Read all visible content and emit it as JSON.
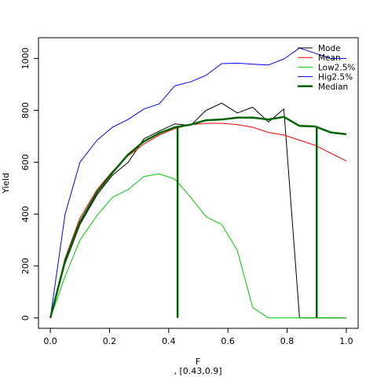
{
  "chart_data": {
    "type": "line",
    "xlabel": "F",
    "xlabel_sub": ", [0.43,0.9]",
    "ylabel": "Yield",
    "xlim": [
      -0.04,
      1.04
    ],
    "ylim": [
      -40,
      1080
    ],
    "xticks": [
      "0.0",
      "0.2",
      "0.4",
      "0.6",
      "0.8",
      "1.0"
    ],
    "xtick_values": [
      0,
      0.2,
      0.4,
      0.6,
      0.8,
      1.0
    ],
    "yticks": [
      "0",
      "200",
      "400",
      "600",
      "800",
      "1000"
    ],
    "ytick_values": [
      0,
      200,
      400,
      600,
      800,
      1000
    ],
    "grid": false,
    "legend_position": "top-right",
    "x": [
      0,
      0.05,
      0.1,
      0.158,
      0.21,
      0.263,
      0.316,
      0.368,
      0.421,
      0.474,
      0.526,
      0.579,
      0.632,
      0.684,
      0.737,
      0.789,
      0.842,
      0.895,
      0.947,
      1.0
    ],
    "series": [
      {
        "name": "Mode",
        "color": "#000000",
        "width": 1,
        "values": [
          0,
          210,
          360,
          475,
          550,
          600,
          690,
          720,
          748,
          742,
          800,
          828,
          790,
          812,
          755,
          805,
          0,
          0,
          0,
          0
        ]
      },
      {
        "name": "Mean",
        "color": "#ff0000",
        "width": 1,
        "values": [
          0,
          230,
          385,
          495,
          565,
          625,
          670,
          705,
          730,
          745,
          750,
          750,
          745,
          735,
          715,
          705,
          685,
          665,
          635,
          605
        ]
      },
      {
        "name": "Low2.5%",
        "color": "#00cc00",
        "width": 1,
        "values": [
          0,
          160,
          300,
          395,
          465,
          495,
          545,
          555,
          535,
          465,
          390,
          360,
          260,
          40,
          0,
          0,
          0,
          0,
          0,
          0
        ]
      },
      {
        "name": "Hig2.5%",
        "color": "#0000ff",
        "width": 1,
        "values": [
          0,
          400,
          600,
          685,
          735,
          765,
          805,
          825,
          895,
          910,
          935,
          980,
          982,
          978,
          975,
          998,
          1040,
          1020,
          1000,
          1000
        ]
      },
      {
        "name": "Median",
        "color": "#006400",
        "width": 2.5,
        "values": [
          0,
          220,
          370,
          485,
          560,
          630,
          680,
          712,
          735,
          745,
          762,
          765,
          772,
          772,
          765,
          775,
          740,
          738,
          715,
          708
        ]
      }
    ],
    "vlines": [
      {
        "x": 0.43,
        "ymin": 0,
        "ymax": 735,
        "color": "#006400"
      },
      {
        "x": 0.9,
        "ymin": 0,
        "ymax": 738,
        "color": "#006400"
      }
    ]
  }
}
